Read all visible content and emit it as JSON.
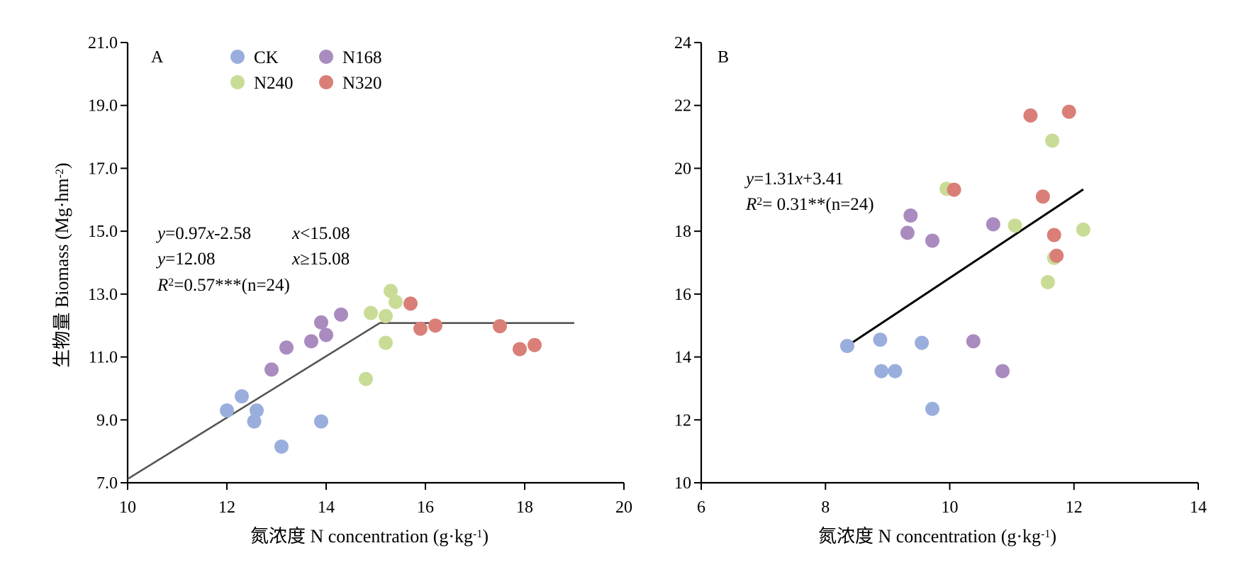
{
  "colors": {
    "CK": "#9aaedd",
    "N168": "#a98bc0",
    "N240": "#c9dc96",
    "N320": "#da7f77",
    "fit_A": "#555555",
    "fit_B": "#000000"
  },
  "chart_data": [
    {
      "type": "scatter",
      "panel_label": "A",
      "xlabel": "氮浓度 N concentration (g·kg-1)",
      "ylabel": "生物量 Biomass (Mg·hm-2)",
      "xlim": [
        10,
        20
      ],
      "ylim": [
        7.0,
        21.0
      ],
      "x_ticks": [
        "10",
        "12",
        "14",
        "16",
        "18",
        "20"
      ],
      "y_ticks": [
        "7.0",
        "9.0",
        "11.0",
        "13.0",
        "15.0",
        "17.0",
        "19.0",
        "21.0"
      ],
      "legend": {
        "position": "top",
        "entries": [
          "CK",
          "N168",
          "N240",
          "N320"
        ]
      },
      "equations": [
        "y=0.97x-2.58",
        "x<15.08",
        "y=12.08",
        "x≥15.08",
        "R2=0.57***(n=24)"
      ],
      "fit": [
        [
          10,
          7.12
        ],
        [
          15.08,
          12.08
        ],
        [
          19.0,
          12.08
        ]
      ],
      "series": [
        {
          "name": "CK",
          "points": [
            [
              12.0,
              9.3
            ],
            [
              12.3,
              9.75
            ],
            [
              12.6,
              9.3
            ],
            [
              12.55,
              8.95
            ],
            [
              13.1,
              8.15
            ],
            [
              13.9,
              8.95
            ]
          ]
        },
        {
          "name": "N168",
          "points": [
            [
              12.9,
              10.6
            ],
            [
              13.2,
              11.3
            ],
            [
              13.7,
              11.5
            ],
            [
              13.9,
              12.1
            ],
            [
              14.0,
              11.7
            ],
            [
              14.3,
              12.35
            ]
          ]
        },
        {
          "name": "N240",
          "points": [
            [
              14.8,
              10.3
            ],
            [
              14.9,
              12.4
            ],
            [
              15.2,
              12.3
            ],
            [
              15.2,
              11.45
            ],
            [
              15.3,
              13.1
            ],
            [
              15.4,
              12.75
            ]
          ]
        },
        {
          "name": "N320",
          "points": [
            [
              15.7,
              12.7
            ],
            [
              15.9,
              11.9
            ],
            [
              16.2,
              12.0
            ],
            [
              17.5,
              11.98
            ],
            [
              17.9,
              11.25
            ],
            [
              18.2,
              11.38
            ]
          ]
        }
      ]
    },
    {
      "type": "scatter",
      "panel_label": "B",
      "xlabel": "氮浓度 N concentration (g·kg-1)",
      "ylabel": "",
      "xlim": [
        6,
        14
      ],
      "ylim": [
        10,
        24
      ],
      "x_ticks": [
        "6",
        "8",
        "10",
        "12",
        "14"
      ],
      "y_ticks": [
        "10",
        "12",
        "14",
        "16",
        "18",
        "20",
        "22",
        "24"
      ],
      "equations": [
        "y=1.31x+3.41",
        "R2= 0.31**(n=24)"
      ],
      "fit": [
        [
          8.35,
          14.35
        ],
        [
          12.15,
          19.33
        ]
      ],
      "series": [
        {
          "name": "CK",
          "points": [
            [
              8.35,
              14.35
            ],
            [
              8.88,
              14.55
            ],
            [
              8.9,
              13.55
            ],
            [
              9.12,
              13.55
            ],
            [
              9.55,
              14.45
            ],
            [
              9.72,
              12.35
            ]
          ]
        },
        {
          "name": "N168",
          "points": [
            [
              9.32,
              17.95
            ],
            [
              9.37,
              18.5
            ],
            [
              9.72,
              17.7
            ],
            [
              10.38,
              14.5
            ],
            [
              10.7,
              18.22
            ],
            [
              10.85,
              13.55
            ]
          ]
        },
        {
          "name": "N240",
          "points": [
            [
              9.95,
              19.35
            ],
            [
              11.05,
              18.18
            ],
            [
              11.58,
              16.38
            ],
            [
              11.65,
              20.88
            ],
            [
              11.68,
              17.15
            ],
            [
              12.15,
              18.05
            ]
          ]
        },
        {
          "name": "N320",
          "points": [
            [
              10.07,
              19.32
            ],
            [
              11.3,
              21.68
            ],
            [
              11.5,
              19.1
            ],
            [
              11.68,
              17.88
            ],
            [
              11.72,
              17.22
            ],
            [
              11.92,
              21.8
            ]
          ]
        }
      ]
    }
  ]
}
